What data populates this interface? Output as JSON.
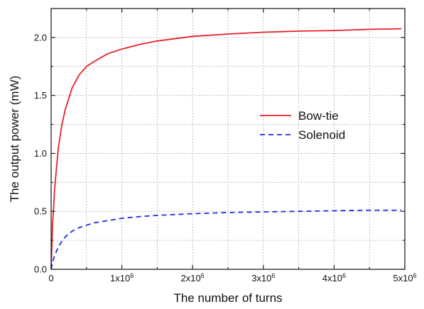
{
  "chart_data": {
    "type": "line",
    "xlabel": "The number of turns",
    "ylabel": "The output power (mW)",
    "xlim": [
      0,
      5000000
    ],
    "ylim": [
      0,
      2.25
    ],
    "grid": true,
    "legend_position": "right-middle",
    "x_ticks": [
      {
        "value": 0,
        "label": "0"
      },
      {
        "value": 1000000,
        "label": "1x10",
        "sup": "6"
      },
      {
        "value": 2000000,
        "label": "2x10",
        "sup": "6"
      },
      {
        "value": 3000000,
        "label": "3x10",
        "sup": "6"
      },
      {
        "value": 4000000,
        "label": "4x10",
        "sup": "6"
      },
      {
        "value": 5000000,
        "label": "5x10",
        "sup": "6"
      }
    ],
    "y_ticks": [
      {
        "value": 0,
        "label": "0.0"
      },
      {
        "value": 0.5,
        "label": "0.5"
      },
      {
        "value": 1.0,
        "label": "1.0"
      },
      {
        "value": 1.5,
        "label": "1.5"
      },
      {
        "value": 2.0,
        "label": "2.0"
      }
    ],
    "series": [
      {
        "name": "Bow-tie",
        "color": "#e8202a",
        "style": "solid",
        "x": [
          0,
          20000,
          50000,
          100000,
          150000,
          200000,
          300000,
          400000,
          500000,
          600000,
          800000,
          1000000,
          1250000,
          1500000,
          2000000,
          2500000,
          3000000,
          3500000,
          4000000,
          4500000,
          4950000
        ],
        "y": [
          0,
          0.38,
          0.7,
          1.04,
          1.24,
          1.38,
          1.57,
          1.68,
          1.75,
          1.79,
          1.86,
          1.9,
          1.94,
          1.97,
          2.01,
          2.03,
          2.045,
          2.055,
          2.06,
          2.07,
          2.075
        ]
      },
      {
        "name": "Solenoid",
        "color": "#1f2de0",
        "style": "dashed",
        "x": [
          0,
          20000,
          50000,
          100000,
          150000,
          200000,
          300000,
          400000,
          500000,
          600000,
          800000,
          1000000,
          1250000,
          1500000,
          2000000,
          2500000,
          3000000,
          3500000,
          4000000,
          4500000,
          4950000
        ],
        "y": [
          0,
          0.06,
          0.12,
          0.19,
          0.24,
          0.28,
          0.33,
          0.36,
          0.38,
          0.4,
          0.42,
          0.44,
          0.455,
          0.465,
          0.48,
          0.49,
          0.495,
          0.5,
          0.505,
          0.51,
          0.51
        ]
      }
    ]
  }
}
